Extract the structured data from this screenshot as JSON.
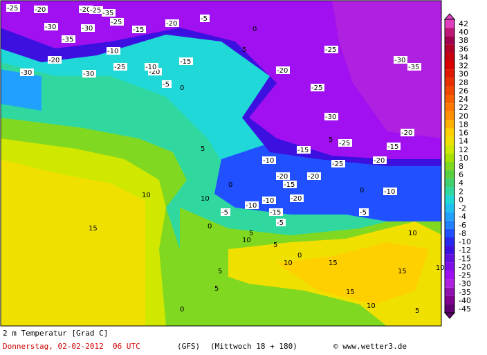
{
  "map": {
    "title": "2 m Temperatur [Grad C]",
    "date": "Donnerstag, 02-02-2012  06 UTC",
    "model": "(GFS)",
    "run": "(Mittwoch 18 + 180)",
    "source": "© www.wetter3.de",
    "scale": {
      "labels": [
        "42",
        "40",
        "38",
        "36",
        "34",
        "32",
        "30",
        "28",
        "26",
        "24",
        "22",
        "20",
        "18",
        "16",
        "14",
        "12",
        "10",
        "8",
        "6",
        "4",
        "2",
        "0",
        "-2",
        "-4",
        "-6",
        "-8",
        "-10",
        "-12",
        "-15",
        "-20",
        "-25",
        "-30",
        "-35",
        "-40",
        "-45"
      ],
      "colors": [
        "#e040c0",
        "#c01878",
        "#a00050",
        "#b00028",
        "#c80010",
        "#d80000",
        "#e01800",
        "#e83000",
        "#f04800",
        "#f86000",
        "#ff7800",
        "#ff9000",
        "#ffb000",
        "#ffd000",
        "#f0e000",
        "#d0e800",
        "#a8e000",
        "#80d820",
        "#58d040",
        "#40d070",
        "#30d8a0",
        "#20d8d8",
        "#20c0f0",
        "#20a0ff",
        "#2080ff",
        "#2050ff",
        "#2828f0",
        "#3c10e0",
        "#6010e0",
        "#8010e8",
        "#a010f0",
        "#b020e0",
        "#9010b0",
        "#800090",
        "#600070"
      ]
    },
    "contour_labels": [
      "-15",
      "-20",
      "-30",
      "-20",
      "-25",
      "-35",
      "-30",
      "-25",
      "-20",
      "-15",
      "-10",
      "-30",
      "-20",
      "-25",
      "-5",
      "0",
      "5",
      "-35",
      "-30",
      "-20",
      "-15",
      "-10",
      "-5",
      "0",
      "-25",
      "-20",
      "-25",
      "-30",
      "-35",
      "-25",
      "-15",
      "-10",
      "-20",
      "0",
      "5",
      "10",
      "15",
      "10",
      "5",
      "0",
      "-5",
      "-10",
      "-15",
      "-20",
      "-25",
      "-30",
      "-20",
      "-15",
      "-10",
      "-5",
      "0",
      "5",
      "10",
      "15",
      "10",
      "5",
      "0",
      "-5",
      "15",
      "10",
      "5",
      "0",
      "-10",
      "-15",
      "-20",
      "5",
      "10",
      "15",
      "10",
      "5",
      "-20",
      "-25"
    ]
  }
}
